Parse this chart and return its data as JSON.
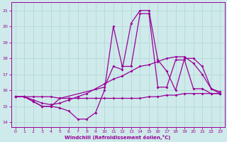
{
  "xlabel": "Windchill (Refroidissement éolien,°C)",
  "xlim": [
    -0.5,
    23.5
  ],
  "ylim": [
    13.7,
    21.5
  ],
  "xticks": [
    0,
    1,
    2,
    3,
    4,
    5,
    6,
    7,
    8,
    9,
    10,
    11,
    12,
    13,
    14,
    15,
    16,
    17,
    18,
    19,
    20,
    21,
    22,
    23
  ],
  "yticks": [
    14,
    15,
    16,
    17,
    18,
    19,
    20,
    21
  ],
  "bg_color": "#ceeaea",
  "line_color": "#990099",
  "grid_color": "#b0d4d4",
  "line1": {
    "x": [
      0,
      1,
      2,
      3,
      4,
      5,
      6,
      7,
      8,
      9,
      10,
      11,
      12,
      13,
      14,
      15,
      16,
      17,
      18,
      19,
      20,
      21,
      22,
      23
    ],
    "y": [
      15.6,
      15.6,
      15.3,
      15.0,
      15.0,
      14.9,
      14.7,
      14.2,
      14.2,
      14.6,
      16.0,
      20.0,
      17.5,
      17.5,
      20.8,
      20.8,
      16.2,
      16.2,
      17.9,
      17.9,
      16.1,
      16.1,
      15.8,
      15.8
    ]
  },
  "line2": {
    "x": [
      0,
      1,
      2,
      3,
      4,
      5,
      6,
      7,
      8,
      9,
      10,
      11,
      12,
      13,
      14,
      15,
      16,
      17,
      18,
      19,
      20,
      21,
      22,
      23
    ],
    "y": [
      15.6,
      15.6,
      15.4,
      15.2,
      15.1,
      15.2,
      15.4,
      15.6,
      15.8,
      16.1,
      16.4,
      16.7,
      16.9,
      17.2,
      17.5,
      17.6,
      17.8,
      18.0,
      18.1,
      18.1,
      17.7,
      17.0,
      16.1,
      15.8
    ]
  },
  "line3": {
    "x": [
      0,
      1,
      2,
      3,
      4,
      5,
      6,
      7,
      8,
      9,
      10,
      11,
      12,
      13,
      14,
      15,
      16,
      17,
      18,
      19,
      20,
      21,
      22,
      23
    ],
    "y": [
      15.6,
      15.6,
      15.6,
      15.6,
      15.6,
      15.5,
      15.5,
      15.5,
      15.5,
      15.5,
      15.5,
      15.5,
      15.5,
      15.5,
      15.5,
      15.6,
      15.6,
      15.7,
      15.7,
      15.8,
      15.8,
      15.8,
      15.8,
      15.8
    ]
  },
  "line4": {
    "x": [
      0,
      1,
      2,
      3,
      4,
      5,
      10,
      11,
      12,
      13,
      14,
      15,
      16,
      17,
      18,
      19,
      20,
      21,
      22,
      23
    ],
    "y": [
      15.6,
      15.6,
      15.3,
      15.0,
      15.0,
      15.5,
      16.2,
      17.5,
      17.3,
      20.2,
      21.0,
      21.0,
      17.9,
      17.2,
      16.0,
      18.0,
      18.0,
      17.5,
      16.1,
      15.9
    ]
  }
}
